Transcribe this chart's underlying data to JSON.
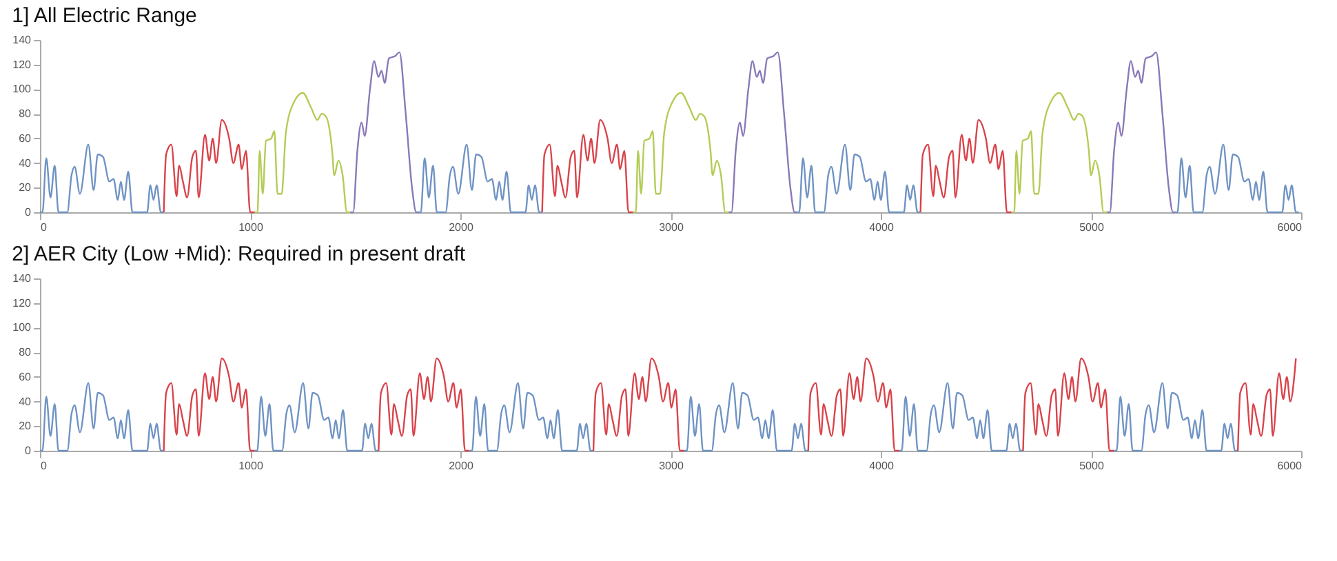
{
  "chart_data": [
    {
      "type": "line",
      "title": "1] All Electric Range",
      "xlim": [
        0,
        6000
      ],
      "xticks": [
        0,
        1000,
        2000,
        3000,
        4000,
        5000,
        6000
      ],
      "ylim": [
        0,
        140
      ],
      "yticks": [
        0,
        20,
        40,
        60,
        80,
        100,
        120,
        140
      ],
      "series": [
        {
          "color": "#6f93c4",
          "x": [
            0,
            12,
            30,
            50,
            70,
            88,
            130,
            150,
            165,
            190,
            230,
            255,
            275,
            300,
            330,
            350,
            370,
            385,
            400,
            420,
            440,
            510,
            525,
            540,
            555,
            575,
            589
          ],
          "values": [
            0,
            0,
            44,
            12,
            38,
            0,
            0,
            30,
            37,
            15,
            55,
            18,
            47,
            45,
            25,
            27,
            10,
            25,
            10,
            33,
            0,
            0,
            22,
            10,
            22,
            0,
            0
          ]
        },
        {
          "color": "#d9434a",
          "x": [
            589,
            600,
            625,
            650,
            662,
            680,
            700,
            725,
            742,
            755,
            785,
            805,
            822,
            838,
            865,
            900,
            920,
            945,
            960,
            980,
            1000,
            1022
          ],
          "values": [
            0,
            47,
            55,
            13,
            38,
            25,
            12,
            45,
            50,
            12,
            63,
            42,
            60,
            40,
            75,
            60,
            40,
            55,
            35,
            50,
            0,
            0
          ]
        },
        {
          "color": "#b3cc55",
          "x": [
            1022,
            1035,
            1045,
            1060,
            1075,
            1100,
            1115,
            1130,
            1150,
            1170,
            1210,
            1250,
            1290,
            1320,
            1340,
            1360,
            1390,
            1400,
            1420,
            1440,
            1460,
            1477
          ],
          "values": [
            0,
            0,
            50,
            15,
            58,
            60,
            66,
            15,
            15,
            65,
            90,
            97,
            85,
            75,
            80,
            78,
            50,
            30,
            42,
            30,
            0,
            0
          ]
        },
        {
          "color": "#8a78b8",
          "x": [
            1477,
            1490,
            1510,
            1530,
            1545,
            1570,
            1590,
            1610,
            1625,
            1640,
            1660,
            1690,
            1710,
            1740,
            1770,
            1790,
            1800
          ],
          "values": [
            0,
            0,
            50,
            73,
            62,
            100,
            123,
            110,
            115,
            105,
            125,
            127,
            130,
            80,
            20,
            0,
            0
          ]
        },
        {
          "color": "#6f93c4",
          "x": [
            1800,
            1812,
            1830,
            1850,
            1870,
            1888,
            1930,
            1950,
            1965,
            1990,
            2030,
            2055,
            2075,
            2100,
            2130,
            2150,
            2170,
            2185,
            2200,
            2220,
            2240,
            2310,
            2325,
            2340,
            2355,
            2375,
            2389
          ],
          "values": [
            0,
            0,
            44,
            12,
            38,
            0,
            0,
            30,
            37,
            15,
            55,
            18,
            47,
            45,
            25,
            27,
            10,
            25,
            10,
            33,
            0,
            0,
            22,
            10,
            22,
            0,
            0
          ]
        },
        {
          "color": "#d9434a",
          "x": [
            2389,
            2400,
            2425,
            2450,
            2462,
            2480,
            2500,
            2525,
            2542,
            2555,
            2585,
            2605,
            2622,
            2638,
            2665,
            2700,
            2720,
            2745,
            2760,
            2780,
            2800,
            2822
          ],
          "values": [
            0,
            47,
            55,
            13,
            38,
            25,
            12,
            45,
            50,
            12,
            63,
            42,
            60,
            40,
            75,
            60,
            40,
            55,
            35,
            50,
            0,
            0
          ]
        },
        {
          "color": "#b3cc55",
          "x": [
            2822,
            2835,
            2845,
            2860,
            2875,
            2900,
            2915,
            2930,
            2950,
            2970,
            3010,
            3050,
            3090,
            3120,
            3140,
            3160,
            3190,
            3200,
            3220,
            3240,
            3260,
            3277
          ],
          "values": [
            0,
            0,
            50,
            15,
            58,
            60,
            66,
            15,
            15,
            65,
            90,
            97,
            85,
            75,
            80,
            78,
            50,
            30,
            42,
            30,
            0,
            0
          ]
        },
        {
          "color": "#8a78b8",
          "x": [
            3277,
            3290,
            3310,
            3330,
            3345,
            3370,
            3390,
            3410,
            3425,
            3440,
            3460,
            3490,
            3510,
            3540,
            3570,
            3590,
            3600
          ],
          "values": [
            0,
            0,
            50,
            73,
            62,
            100,
            123,
            110,
            115,
            105,
            125,
            127,
            130,
            80,
            20,
            0,
            0
          ]
        },
        {
          "color": "#6f93c4",
          "x": [
            3600,
            3612,
            3630,
            3650,
            3670,
            3688,
            3730,
            3750,
            3765,
            3790,
            3830,
            3855,
            3875,
            3900,
            3930,
            3950,
            3970,
            3985,
            4000,
            4020,
            4040,
            4110,
            4125,
            4140,
            4155,
            4175,
            4189
          ],
          "values": [
            0,
            0,
            44,
            12,
            38,
            0,
            0,
            30,
            37,
            15,
            55,
            18,
            47,
            45,
            25,
            27,
            10,
            25,
            10,
            33,
            0,
            0,
            22,
            10,
            22,
            0,
            0
          ]
        },
        {
          "color": "#d9434a",
          "x": [
            4189,
            4200,
            4225,
            4250,
            4262,
            4280,
            4300,
            4325,
            4342,
            4355,
            4385,
            4405,
            4422,
            4438,
            4465,
            4500,
            4520,
            4545,
            4560,
            4580,
            4600,
            4622
          ],
          "values": [
            0,
            47,
            55,
            13,
            38,
            25,
            12,
            45,
            50,
            12,
            63,
            42,
            60,
            40,
            75,
            60,
            40,
            55,
            35,
            50,
            0,
            0
          ]
        },
        {
          "color": "#b3cc55",
          "x": [
            4622,
            4635,
            4645,
            4660,
            4675,
            4700,
            4715,
            4730,
            4750,
            4770,
            4810,
            4850,
            4890,
            4920,
            4940,
            4960,
            4990,
            5000,
            5020,
            5040,
            5060,
            5077
          ],
          "values": [
            0,
            0,
            50,
            15,
            58,
            60,
            66,
            15,
            15,
            65,
            90,
            97,
            85,
            75,
            80,
            78,
            50,
            30,
            42,
            30,
            0,
            0
          ]
        },
        {
          "color": "#8a78b8",
          "x": [
            5077,
            5090,
            5110,
            5130,
            5145,
            5170,
            5190,
            5210,
            5225,
            5240,
            5260,
            5290,
            5310,
            5340,
            5370,
            5390,
            5400
          ],
          "values": [
            0,
            0,
            50,
            73,
            62,
            100,
            123,
            110,
            115,
            105,
            125,
            127,
            130,
            80,
            20,
            0,
            0
          ]
        },
        {
          "color": "#6f93c4",
          "x": [
            5400,
            5412,
            5430,
            5450,
            5470,
            5488,
            5530,
            5550,
            5565,
            5590,
            5630,
            5655,
            5675,
            5700,
            5730,
            5750,
            5770,
            5785,
            5800,
            5820,
            5840,
            5910,
            5925,
            5940,
            5955,
            5975,
            5989
          ],
          "values": [
            0,
            0,
            44,
            12,
            38,
            0,
            0,
            30,
            37,
            15,
            55,
            18,
            47,
            45,
            25,
            27,
            10,
            25,
            10,
            33,
            0,
            0,
            22,
            10,
            22,
            0,
            0
          ]
        }
      ]
    },
    {
      "type": "line",
      "title": "2] AER City (Low +Mid): Required in present draft",
      "xlim": [
        0,
        6000
      ],
      "xticks": [
        0,
        1000,
        2000,
        3000,
        4000,
        5000,
        6000
      ],
      "ylim": [
        0,
        140
      ],
      "yticks": [
        0,
        20,
        40,
        60,
        80,
        100,
        120,
        140
      ],
      "series": [
        {
          "color": "#6f93c4",
          "x": [
            0,
            12,
            30,
            50,
            70,
            88,
            130,
            150,
            165,
            190,
            230,
            255,
            275,
            300,
            330,
            350,
            370,
            385,
            400,
            420,
            440,
            510,
            525,
            540,
            555,
            575,
            589
          ],
          "values": [
            0,
            0,
            44,
            12,
            38,
            0,
            0,
            30,
            37,
            15,
            55,
            18,
            47,
            45,
            25,
            27,
            10,
            25,
            10,
            33,
            0,
            0,
            22,
            10,
            22,
            0,
            0
          ]
        },
        {
          "color": "#d9434a",
          "x": [
            589,
            600,
            625,
            650,
            662,
            680,
            700,
            725,
            742,
            755,
            785,
            805,
            822,
            838,
            865,
            900,
            920,
            945,
            960,
            980,
            1000,
            1022
          ],
          "values": [
            0,
            47,
            55,
            13,
            38,
            25,
            12,
            45,
            50,
            12,
            63,
            42,
            60,
            40,
            75,
            60,
            40,
            55,
            35,
            50,
            0,
            0
          ]
        },
        {
          "color": "#6f93c4",
          "x": [
            1022,
            1034,
            1052,
            1072,
            1092,
            1110,
            1152,
            1172,
            1187,
            1212,
            1252,
            1277,
            1297,
            1322,
            1352,
            1372,
            1392,
            1407,
            1422,
            1442,
            1462,
            1532,
            1547,
            1562,
            1577,
            1597,
            1611
          ],
          "values": [
            0,
            0,
            44,
            12,
            38,
            0,
            0,
            30,
            37,
            15,
            55,
            18,
            47,
            45,
            25,
            27,
            10,
            25,
            10,
            33,
            0,
            0,
            22,
            10,
            22,
            0,
            0
          ]
        },
        {
          "color": "#d9434a",
          "x": [
            1611,
            1622,
            1647,
            1672,
            1684,
            1702,
            1722,
            1747,
            1764,
            1777,
            1807,
            1827,
            1844,
            1860,
            1887,
            1922,
            1942,
            1967,
            1982,
            2002,
            2022,
            2044
          ],
          "values": [
            0,
            47,
            55,
            13,
            38,
            25,
            12,
            45,
            50,
            12,
            63,
            42,
            60,
            40,
            75,
            60,
            40,
            55,
            35,
            50,
            0,
            0
          ]
        },
        {
          "color": "#6f93c4",
          "x": [
            2044,
            2056,
            2074,
            2094,
            2114,
            2132,
            2174,
            2194,
            2209,
            2234,
            2274,
            2299,
            2319,
            2344,
            2374,
            2394,
            2414,
            2429,
            2444,
            2464,
            2484,
            2554,
            2569,
            2584,
            2599,
            2619,
            2633
          ],
          "values": [
            0,
            0,
            44,
            12,
            38,
            0,
            0,
            30,
            37,
            15,
            55,
            18,
            47,
            45,
            25,
            27,
            10,
            25,
            10,
            33,
            0,
            0,
            22,
            10,
            22,
            0,
            0
          ]
        },
        {
          "color": "#d9434a",
          "x": [
            2633,
            2644,
            2669,
            2694,
            2706,
            2724,
            2744,
            2769,
            2786,
            2799,
            2829,
            2849,
            2866,
            2882,
            2909,
            2944,
            2964,
            2989,
            3004,
            3024,
            3044,
            3066
          ],
          "values": [
            0,
            47,
            55,
            13,
            38,
            25,
            12,
            45,
            50,
            12,
            63,
            42,
            60,
            40,
            75,
            60,
            40,
            55,
            35,
            50,
            0,
            0
          ]
        },
        {
          "color": "#6f93c4",
          "x": [
            3066,
            3078,
            3096,
            3116,
            3136,
            3154,
            3196,
            3216,
            3231,
            3256,
            3296,
            3321,
            3341,
            3366,
            3396,
            3416,
            3436,
            3451,
            3466,
            3486,
            3506,
            3576,
            3591,
            3606,
            3621,
            3641,
            3655
          ],
          "values": [
            0,
            0,
            44,
            12,
            38,
            0,
            0,
            30,
            37,
            15,
            55,
            18,
            47,
            45,
            25,
            27,
            10,
            25,
            10,
            33,
            0,
            0,
            22,
            10,
            22,
            0,
            0
          ]
        },
        {
          "color": "#d9434a",
          "x": [
            3655,
            3666,
            3691,
            3716,
            3728,
            3746,
            3766,
            3791,
            3808,
            3821,
            3851,
            3871,
            3888,
            3904,
            3931,
            3966,
            3986,
            4011,
            4026,
            4046,
            4066,
            4088
          ],
          "values": [
            0,
            47,
            55,
            13,
            38,
            25,
            12,
            45,
            50,
            12,
            63,
            42,
            60,
            40,
            75,
            60,
            40,
            55,
            35,
            50,
            0,
            0
          ]
        },
        {
          "color": "#6f93c4",
          "x": [
            4088,
            4100,
            4118,
            4138,
            4158,
            4176,
            4218,
            4238,
            4253,
            4278,
            4318,
            4343,
            4363,
            4388,
            4418,
            4438,
            4458,
            4473,
            4488,
            4508,
            4528,
            4598,
            4613,
            4628,
            4643,
            4663,
            4677
          ],
          "values": [
            0,
            0,
            44,
            12,
            38,
            0,
            0,
            30,
            37,
            15,
            55,
            18,
            47,
            45,
            25,
            27,
            10,
            25,
            10,
            33,
            0,
            0,
            22,
            10,
            22,
            0,
            0
          ]
        },
        {
          "color": "#d9434a",
          "x": [
            4677,
            4688,
            4713,
            4738,
            4750,
            4768,
            4788,
            4813,
            4830,
            4843,
            4873,
            4893,
            4910,
            4926,
            4953,
            4988,
            5008,
            5033,
            5048,
            5068,
            5088,
            5110
          ],
          "values": [
            0,
            47,
            55,
            13,
            38,
            25,
            12,
            45,
            50,
            12,
            63,
            42,
            60,
            40,
            75,
            60,
            40,
            55,
            35,
            50,
            0,
            0
          ]
        },
        {
          "color": "#6f93c4",
          "x": [
            5110,
            5122,
            5140,
            5160,
            5180,
            5198,
            5240,
            5260,
            5275,
            5300,
            5340,
            5365,
            5385,
            5410,
            5440,
            5460,
            5480,
            5495,
            5510,
            5530,
            5550,
            5620,
            5635,
            5650,
            5665,
            5685,
            5699
          ],
          "values": [
            0,
            0,
            44,
            12,
            38,
            0,
            0,
            30,
            37,
            15,
            55,
            18,
            47,
            45,
            25,
            27,
            10,
            25,
            10,
            33,
            0,
            0,
            22,
            10,
            22,
            0,
            0
          ]
        },
        {
          "color": "#d9434a",
          "x": [
            5699,
            5710,
            5735,
            5760,
            5772,
            5790,
            5810,
            5835,
            5852,
            5865,
            5895,
            5915,
            5932,
            5948,
            5975
          ],
          "values": [
            0,
            47,
            55,
            13,
            38,
            25,
            12,
            45,
            50,
            12,
            63,
            42,
            60,
            40,
            75
          ]
        }
      ]
    }
  ]
}
